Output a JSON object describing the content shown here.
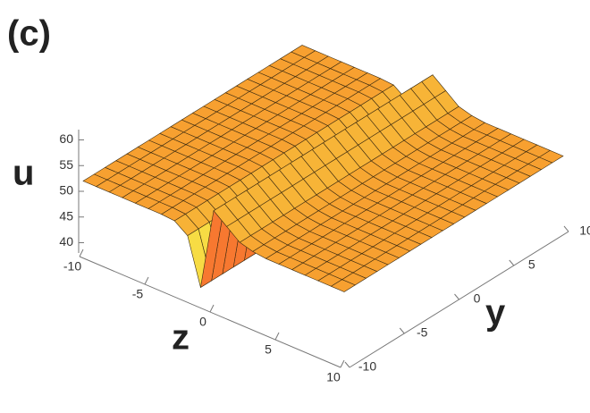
{
  "chart_data": {
    "type": "surface3d",
    "title": "(c)",
    "xlabel": "z",
    "ylabel": "y",
    "zlabel": "u",
    "z": [
      -10,
      -9,
      -8,
      -7,
      -6,
      -5,
      -4,
      -3,
      -2,
      -1,
      0,
      1,
      2,
      3,
      4,
      5,
      6,
      7,
      8,
      9,
      10
    ],
    "y": [
      -10,
      -9,
      -8,
      -7,
      -6,
      -5,
      -4,
      -3,
      -2,
      -1,
      0,
      1,
      2,
      3,
      4,
      5,
      6,
      7,
      8,
      9,
      10
    ],
    "u": [
      52,
      52,
      52,
      52,
      52,
      52,
      52,
      51.8,
      50,
      41,
      57,
      55,
      53,
      52.3,
      52,
      52,
      52,
      52,
      52,
      52,
      52
    ],
    "color": "#f7a030",
    "xlim": [
      -10,
      10
    ],
    "xticks": [
      -10,
      -5,
      0,
      5,
      10
    ],
    "ylim": [
      -10,
      10
    ],
    "yticks": [
      -10,
      -5,
      0,
      5,
      10
    ],
    "ulim": [
      38,
      62
    ],
    "uticks": [
      40,
      45,
      50,
      55,
      60
    ]
  }
}
